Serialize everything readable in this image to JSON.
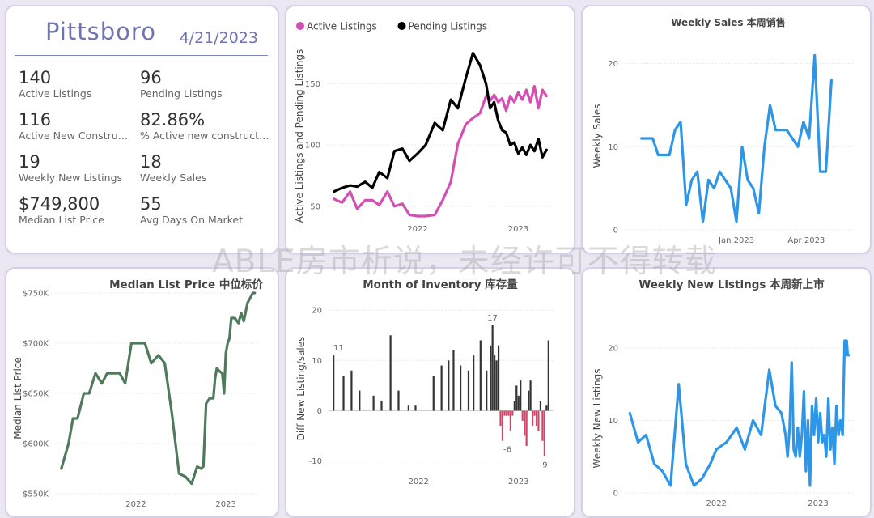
{
  "watermark": "ABLE房市析说，未经许可不得转载",
  "kpi": {
    "city": "Pittsboro",
    "date": "4/21/2023",
    "items": [
      {
        "value": "140",
        "label": "Active Listings"
      },
      {
        "value": "96",
        "label": "Pending Listings"
      },
      {
        "value": "116",
        "label": "Active New Constructi..."
      },
      {
        "value": "82.86%",
        "label": "% Active new constructions"
      },
      {
        "value": "19",
        "label": "Weekly New Listings"
      },
      {
        "value": "18",
        "label": "Weekly Sales"
      },
      {
        "value": "$749,800",
        "label": "Median List Price"
      },
      {
        "value": "55",
        "label": "Avg Days On Market"
      }
    ]
  },
  "chart_data": [
    {
      "id": "active-pending",
      "type": "line",
      "title": "",
      "ylabel": "Active Listings and Pending Listings",
      "legend": "top-left",
      "ylim": [
        40,
        180
      ],
      "xlim": [
        2021.1,
        2023.35
      ],
      "yticks": [
        50,
        100,
        150
      ],
      "xticks": [
        {
          "x": 2022.0,
          "label": "2022"
        },
        {
          "x": 2023.0,
          "label": "2023"
        }
      ],
      "series": [
        {
          "name": "Active Listings",
          "color": "#d44fb4",
          "x": [
            2021.17,
            2021.25,
            2021.33,
            2021.4,
            2021.48,
            2021.55,
            2021.62,
            2021.7,
            2021.77,
            2021.85,
            2021.92,
            2022.0,
            2022.08,
            2022.17,
            2022.25,
            2022.33,
            2022.4,
            2022.48,
            2022.55,
            2022.62,
            2022.68,
            2022.72,
            2022.76,
            2022.8,
            2022.84,
            2022.88,
            2022.92,
            2022.96,
            2023.0,
            2023.04,
            2023.08,
            2023.12,
            2023.16,
            2023.2,
            2023.24,
            2023.28
          ],
          "y": [
            56,
            53,
            62,
            48,
            55,
            55,
            51,
            62,
            50,
            52,
            43,
            42,
            42,
            43,
            55,
            70,
            101,
            117,
            122,
            126,
            140,
            136,
            141,
            135,
            138,
            128,
            140,
            135,
            143,
            137,
            145,
            135,
            148,
            130,
            145,
            140
          ]
        },
        {
          "name": "Pending Listings",
          "color": "#000000",
          "x": [
            2021.17,
            2021.25,
            2021.33,
            2021.4,
            2021.48,
            2021.55,
            2021.62,
            2021.7,
            2021.77,
            2021.85,
            2021.92,
            2022.0,
            2022.08,
            2022.17,
            2022.25,
            2022.33,
            2022.4,
            2022.48,
            2022.55,
            2022.62,
            2022.68,
            2022.72,
            2022.76,
            2022.8,
            2022.84,
            2022.88,
            2022.92,
            2022.96,
            2023.0,
            2023.04,
            2023.08,
            2023.12,
            2023.16,
            2023.2,
            2023.24,
            2023.28
          ],
          "y": [
            62,
            65,
            67,
            66,
            70,
            65,
            78,
            73,
            95,
            97,
            87,
            93,
            100,
            118,
            112,
            137,
            130,
            155,
            175,
            165,
            150,
            130,
            135,
            120,
            112,
            110,
            100,
            102,
            93,
            98,
            92,
            100,
            95,
            105,
            90,
            96
          ]
        }
      ]
    },
    {
      "id": "weekly-sales",
      "type": "line",
      "title": "Weekly Sales 本周销售",
      "ylabel": "Weekly Sales",
      "ylim": [
        0,
        22
      ],
      "xlim": [
        2022.6,
        2023.42
      ],
      "yticks": [
        0,
        10,
        20
      ],
      "xticks": [
        {
          "x": 2023.0,
          "label": "Jan 2023"
        },
        {
          "x": 2023.25,
          "label": "Apr 2023"
        }
      ],
      "series": [
        {
          "name": "",
          "color": "#2e96e6",
          "x": [
            2022.66,
            2022.68,
            2022.7,
            2022.72,
            2022.74,
            2022.76,
            2022.78,
            2022.8,
            2022.82,
            2022.84,
            2022.86,
            2022.88,
            2022.9,
            2022.92,
            2022.94,
            2022.96,
            2022.98,
            2023.0,
            2023.02,
            2023.04,
            2023.06,
            2023.08,
            2023.1,
            2023.12,
            2023.14,
            2023.16,
            2023.18,
            2023.2,
            2023.22,
            2023.24,
            2023.26,
            2023.28,
            2023.3,
            2023.32,
            2023.34
          ],
          "y": [
            11,
            11,
            11,
            9,
            9,
            9,
            12,
            13,
            3,
            6,
            7,
            1,
            6,
            5,
            7,
            6,
            5,
            1,
            10,
            6,
            5,
            2,
            10,
            15,
            12,
            12,
            12,
            11,
            10,
            13,
            11,
            21,
            7,
            7,
            18
          ]
        }
      ]
    },
    {
      "id": "median-list-price",
      "type": "line",
      "title": "Median List Price  中位标价",
      "ylabel": "Median List Price",
      "ylim": [
        550,
        750
      ],
      "xlim": [
        2021.1,
        2023.35
      ],
      "yticks": [
        {
          "v": 550,
          "label": "$550K"
        },
        {
          "v": 600,
          "label": "$600K"
        },
        {
          "v": 650,
          "label": "$650K"
        },
        {
          "v": 700,
          "label": "$700K"
        },
        {
          "v": 750,
          "label": "$750K"
        }
      ],
      "xticks": [
        {
          "x": 2022.0,
          "label": "2022"
        },
        {
          "x": 2023.0,
          "label": "2023"
        }
      ],
      "series": [
        {
          "name": "",
          "color": "#4f7a5b",
          "x": [
            2021.17,
            2021.25,
            2021.3,
            2021.35,
            2021.42,
            2021.48,
            2021.55,
            2021.62,
            2021.68,
            2021.75,
            2021.82,
            2021.88,
            2021.95,
            2022.02,
            2022.1,
            2022.17,
            2022.25,
            2022.32,
            2022.4,
            2022.48,
            2022.55,
            2022.62,
            2022.68,
            2022.72,
            2022.75,
            2022.78,
            2022.82,
            2022.86,
            2022.88,
            2022.9,
            2022.93,
            2022.96,
            2022.98,
            2023.0,
            2023.02,
            2023.04,
            2023.06,
            2023.1,
            2023.14,
            2023.17,
            2023.2,
            2023.24,
            2023.27,
            2023.3,
            2023.32
          ],
          "y": [
            575,
            600,
            625,
            625,
            650,
            650,
            670,
            660,
            670,
            670,
            670,
            660,
            700,
            700,
            700,
            680,
            688,
            680,
            630,
            570,
            567,
            560,
            577,
            575,
            577,
            640,
            645,
            645,
            665,
            675,
            672,
            670,
            650,
            690,
            700,
            705,
            725,
            725,
            720,
            730,
            722,
            740,
            745,
            750,
            750
          ]
        }
      ]
    },
    {
      "id": "month-of-inventory",
      "type": "bar",
      "title": "Month of Inventory 库存量",
      "ylabel": "Diff New Listing/sales",
      "ylim": [
        -12,
        21
      ],
      "xlim": [
        2021.1,
        2023.35
      ],
      "yticks": [
        -10,
        0,
        10,
        20
      ],
      "xticks": [
        {
          "x": 2022.0,
          "label": "2022"
        },
        {
          "x": 2023.0,
          "label": "2023"
        }
      ],
      "colors": {
        "positive": "#333333",
        "negative": "#c94a6a"
      },
      "data_labels": [
        {
          "x": 2021.2,
          "y": 11,
          "label": "11"
        },
        {
          "x": 2022.74,
          "y": 17,
          "label": "17"
        },
        {
          "x": 2022.89,
          "y": -6,
          "label": "-6"
        },
        {
          "x": 2023.25,
          "y": -9,
          "label": "-9"
        }
      ],
      "x": [
        2021.15,
        2021.25,
        2021.33,
        2021.41,
        2021.55,
        2021.63,
        2021.72,
        2021.8,
        2021.9,
        2021.97,
        2022.15,
        2022.23,
        2022.3,
        2022.35,
        2022.42,
        2022.5,
        2022.55,
        2022.62,
        2022.68,
        2022.72,
        2022.74,
        2022.76,
        2022.78,
        2022.8,
        2022.82,
        2022.84,
        2022.86,
        2022.88,
        2022.9,
        2022.92,
        2022.94,
        2022.96,
        2022.98,
        2023.0,
        2023.02,
        2023.04,
        2023.06,
        2023.08,
        2023.1,
        2023.12,
        2023.14,
        2023.16,
        2023.18,
        2023.2,
        2023.22,
        2023.24,
        2023.26,
        2023.28,
        2023.3
      ],
      "values": [
        11,
        7,
        8,
        4,
        3,
        2,
        15,
        4,
        1,
        1,
        7,
        9,
        10,
        12,
        9,
        8,
        11,
        14,
        8,
        13,
        17,
        11,
        10,
        13,
        -3,
        -6,
        -1,
        -1,
        -1,
        -4,
        -1,
        2,
        5,
        3,
        6,
        -2,
        -5,
        -7,
        4,
        6,
        -3,
        -1,
        -3,
        -4,
        2,
        -6,
        -9,
        1,
        14
      ]
    },
    {
      "id": "weekly-new-listings",
      "type": "line",
      "title": "Weekly New Listings  本周新上市",
      "ylabel": "Weekly New Listings",
      "ylim": [
        0,
        22
      ],
      "xlim": [
        2021.1,
        2023.35
      ],
      "yticks": [
        0,
        10,
        20
      ],
      "xticks": [
        {
          "x": 2022.0,
          "label": "2022"
        },
        {
          "x": 2023.0,
          "label": "2023"
        }
      ],
      "series": [
        {
          "name": "",
          "color": "#2e96e6",
          "x": [
            2021.15,
            2021.23,
            2021.31,
            2021.39,
            2021.47,
            2021.55,
            2021.63,
            2021.7,
            2021.78,
            2021.86,
            2021.94,
            2022.0,
            2022.1,
            2022.2,
            2022.28,
            2022.36,
            2022.44,
            2022.52,
            2022.58,
            2022.64,
            2022.68,
            2022.7,
            2022.72,
            2022.74,
            2022.76,
            2022.78,
            2022.8,
            2022.82,
            2022.84,
            2022.86,
            2022.88,
            2022.9,
            2022.92,
            2022.94,
            2022.96,
            2022.98,
            2023.0,
            2023.02,
            2023.04,
            2023.06,
            2023.08,
            2023.1,
            2023.12,
            2023.14,
            2023.16,
            2023.18,
            2023.2,
            2023.22,
            2023.24,
            2023.26,
            2023.28,
            2023.29,
            2023.3
          ],
          "y": [
            11,
            7,
            8,
            4,
            3,
            1,
            15,
            4,
            1,
            2,
            4,
            6,
            7,
            9,
            6,
            10,
            8,
            17,
            12,
            11,
            8,
            5,
            9,
            18,
            6,
            5,
            9,
            5,
            8,
            14,
            3,
            10,
            1,
            12,
            8,
            13,
            7,
            11,
            7,
            8,
            5,
            13,
            6,
            9,
            4,
            12,
            8,
            10,
            8,
            21,
            21,
            19,
            19
          ]
        }
      ]
    }
  ]
}
